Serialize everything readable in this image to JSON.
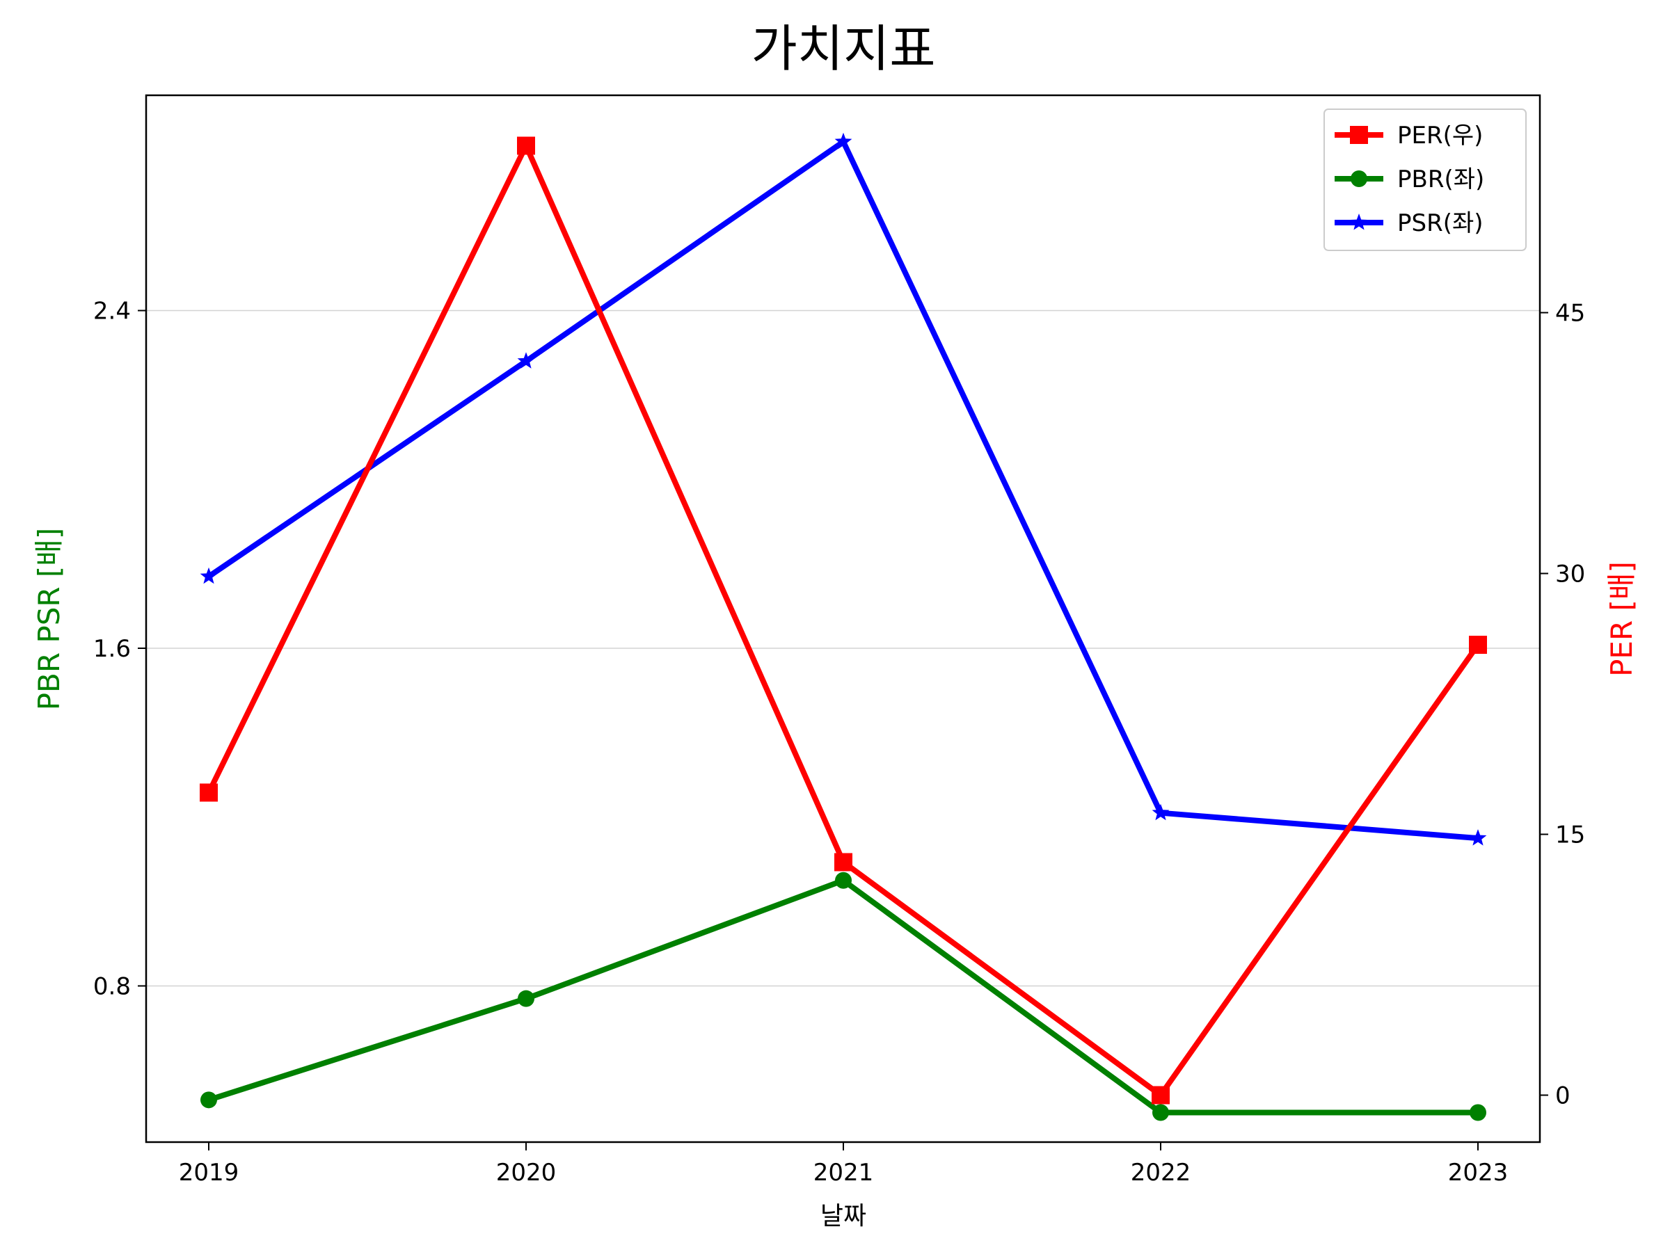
{
  "chart_data": {
    "type": "line",
    "title": "가치지표",
    "xlabel": "날짜",
    "ylabel_left": "PBR PSR [배]",
    "ylabel_right": "PER [배]",
    "categories": [
      "2019",
      "2020",
      "2021",
      "2022",
      "2023"
    ],
    "left_axis": {
      "ticks": [
        0.8,
        1.6,
        2.4
      ],
      "tick_labels": [
        "0.8",
        "1.6",
        "2.4"
      ],
      "ylim": [
        0.43,
        2.91
      ]
    },
    "right_axis": {
      "ticks": [
        0,
        15,
        30,
        45
      ],
      "tick_labels": [
        "0",
        "15",
        "30",
        "45"
      ],
      "ylim": [
        -2.7,
        57.5
      ]
    },
    "grid": "horizontal",
    "legend_position": "top-right",
    "series": [
      {
        "name": "PER(우)",
        "axis": "right",
        "color": "#ff0000",
        "marker": "square",
        "values": [
          17.4,
          54.6,
          13.4,
          0,
          25.9
        ]
      },
      {
        "name": "PBR(좌)",
        "axis": "left",
        "color": "#008000",
        "marker": "circle",
        "values": [
          0.53,
          0.77,
          1.05,
          0.5,
          0.5
        ]
      },
      {
        "name": "PSR(좌)",
        "axis": "left",
        "color": "#0000ff",
        "marker": "star",
        "values": [
          1.77,
          2.28,
          2.8,
          1.21,
          1.15
        ]
      }
    ]
  }
}
